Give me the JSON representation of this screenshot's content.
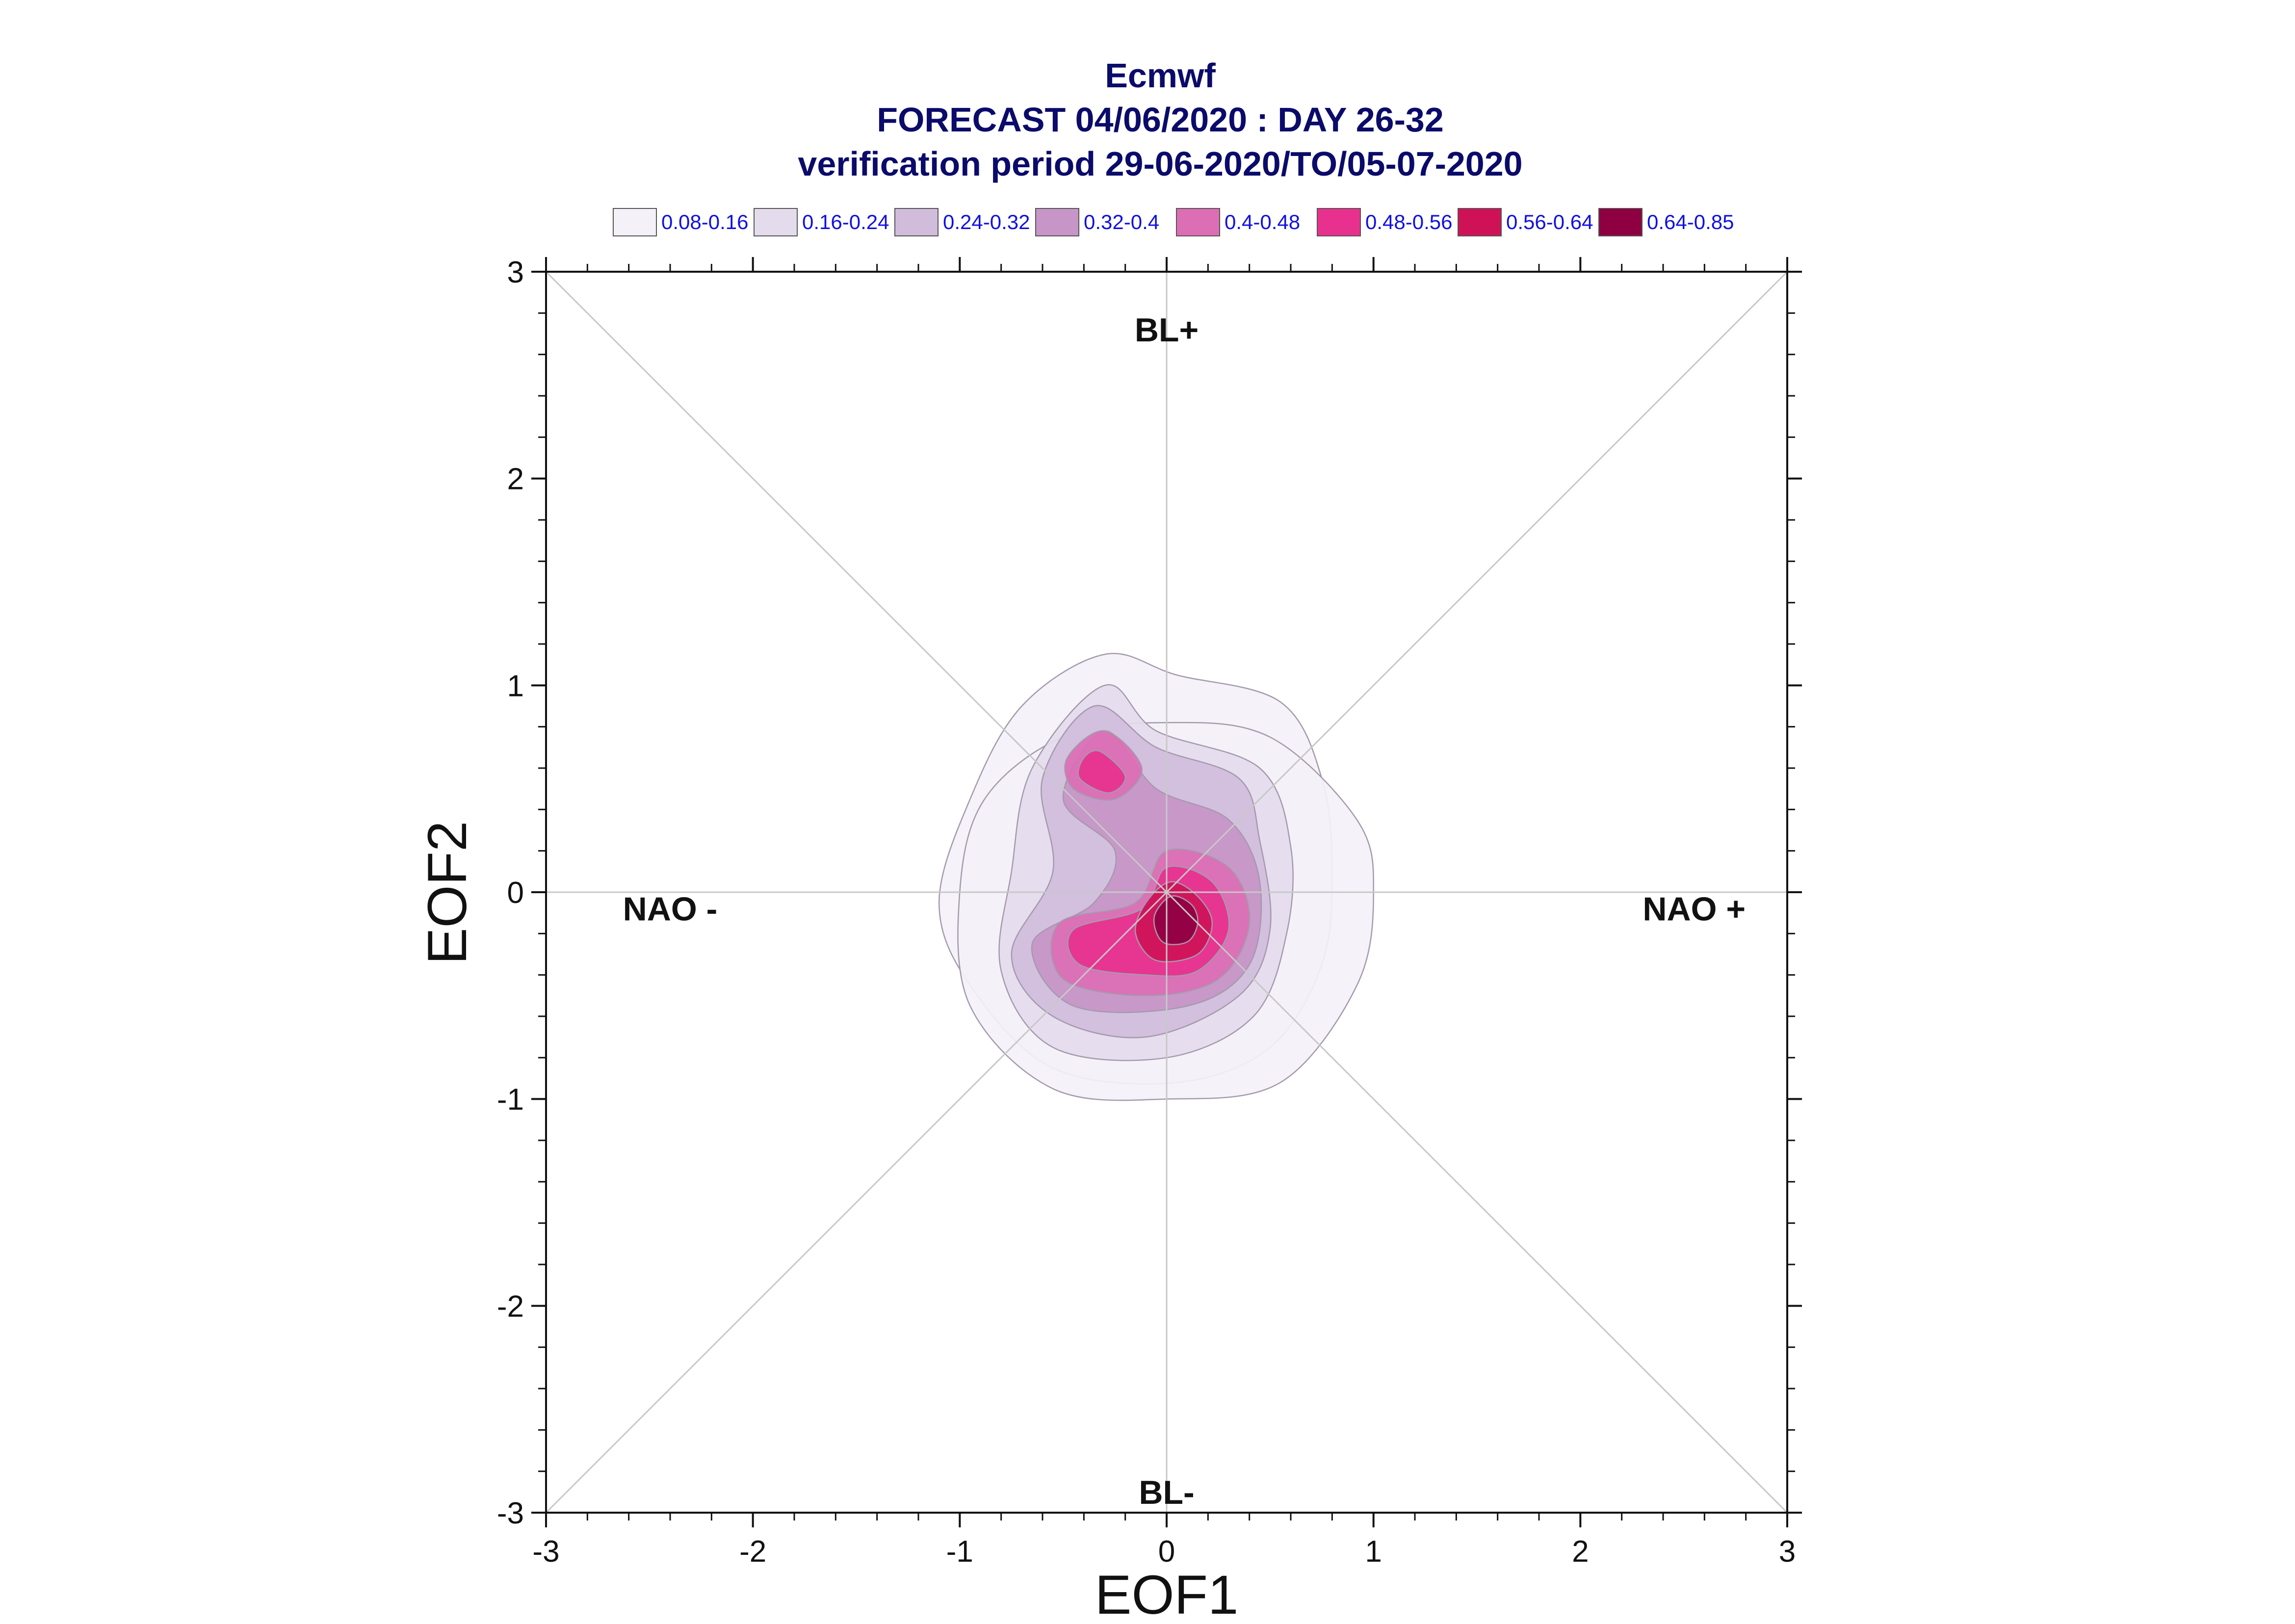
{
  "chart_data": {
    "type": "contour",
    "title_lines": [
      "Ecmwf",
      "FORECAST 04/06/2020 : DAY 26-32",
      "verification period 29-06-2020/TO/05-07-2020"
    ],
    "xlabel": "EOF1",
    "ylabel": "EOF2",
    "xlim": [
      -3,
      3
    ],
    "ylim": [
      -3,
      3
    ],
    "xticks": [
      "-3",
      "-2",
      "-1",
      "0",
      "1",
      "2",
      "3"
    ],
    "yticks": [
      "-3",
      "-2",
      "-1",
      "0",
      "1",
      "2",
      "3"
    ],
    "grid": false,
    "legend_position": "top",
    "regime_labels": [
      {
        "text": "BL+",
        "x": 0,
        "y": 2.72
      },
      {
        "text": "BL-",
        "x": 0,
        "y": -2.9
      },
      {
        "text": "NAO -",
        "x": -2.4,
        "y": -0.08
      },
      {
        "text": "NAO +",
        "x": 2.55,
        "y": -0.08
      }
    ],
    "levels": [
      {
        "label": "0.08-0.16",
        "color": "#f4f1f8"
      },
      {
        "label": "0.16-0.24",
        "color": "#e4dced"
      },
      {
        "label": "0.24-0.32",
        "color": "#d1bcdc"
      },
      {
        "label": "0.32-0.4",
        "color": "#c795c7"
      },
      {
        "label": "0.4-0.48",
        "color": "#dc6eb5"
      },
      {
        "label": "0.48-0.56",
        "color": "#e8308e"
      },
      {
        "label": "0.56-0.64",
        "color": "#cf1258"
      },
      {
        "label": "0.64-0.85",
        "color": "#8e0042"
      }
    ],
    "contours": [
      {
        "level": 0,
        "points": [
          [
            -0.3,
            1.15
          ],
          [
            0.05,
            1.05
          ],
          [
            0.55,
            0.92
          ],
          [
            0.75,
            0.55
          ],
          [
            0.8,
            0.1
          ],
          [
            0.75,
            -0.35
          ],
          [
            0.5,
            -0.75
          ],
          [
            0.05,
            -0.92
          ],
          [
            -0.55,
            -0.85
          ],
          [
            -0.95,
            -0.45
          ],
          [
            -1.1,
            -0.05
          ],
          [
            -0.95,
            0.45
          ],
          [
            -0.7,
            0.9
          ]
        ]
      },
      {
        "level": 0,
        "points": [
          [
            0,
            0.82
          ],
          [
            0.5,
            0.75
          ],
          [
            0.92,
            0.35
          ],
          [
            1.0,
            0
          ],
          [
            0.92,
            -0.45
          ],
          [
            0.55,
            -0.92
          ],
          [
            0,
            -1.0
          ],
          [
            -0.55,
            -0.95
          ],
          [
            -0.95,
            -0.55
          ],
          [
            -1.0,
            0
          ],
          [
            -0.88,
            0.45
          ],
          [
            -0.5,
            0.75
          ]
        ]
      },
      {
        "level": 1,
        "points": [
          [
            -0.3,
            1.0
          ],
          [
            -0.05,
            0.78
          ],
          [
            0.45,
            0.6
          ],
          [
            0.6,
            0.22
          ],
          [
            0.58,
            -0.2
          ],
          [
            0.42,
            -0.6
          ],
          [
            0.0,
            -0.8
          ],
          [
            -0.55,
            -0.75
          ],
          [
            -0.8,
            -0.38
          ],
          [
            -0.75,
            0.1
          ],
          [
            -0.65,
            0.6
          ]
        ]
      },
      {
        "level": 2,
        "points": [
          [
            -0.35,
            0.9
          ],
          [
            -0.05,
            0.7
          ],
          [
            0.35,
            0.55
          ],
          [
            0.45,
            0.25
          ],
          [
            0.5,
            -0.18
          ],
          [
            0.35,
            -0.5
          ],
          [
            -0.1,
            -0.7
          ],
          [
            -0.55,
            -0.6
          ],
          [
            -0.75,
            -0.3
          ],
          [
            -0.55,
            0.1
          ],
          [
            -0.6,
            0.55
          ]
        ]
      },
      {
        "level": 3,
        "points": [
          [
            -0.3,
            0.78
          ],
          [
            -0.05,
            0.5
          ],
          [
            0.3,
            0.35
          ],
          [
            0.45,
            0.05
          ],
          [
            0.4,
            -0.35
          ],
          [
            0.1,
            -0.55
          ],
          [
            -0.45,
            -0.55
          ],
          [
            -0.65,
            -0.25
          ],
          [
            -0.35,
            -0.05
          ],
          [
            -0.25,
            0.2
          ],
          [
            -0.5,
            0.45
          ]
        ]
      },
      {
        "level": 4,
        "points": [
          [
            0.0,
            0.2
          ],
          [
            0.3,
            0.12
          ],
          [
            0.4,
            -0.15
          ],
          [
            0.25,
            -0.42
          ],
          [
            -0.1,
            -0.5
          ],
          [
            -0.5,
            -0.42
          ],
          [
            -0.52,
            -0.15
          ],
          [
            -0.15,
            -0.05
          ]
        ]
      },
      {
        "level": 4,
        "points": [
          [
            -0.3,
            0.78
          ],
          [
            -0.12,
            0.6
          ],
          [
            -0.25,
            0.45
          ],
          [
            -0.45,
            0.5
          ],
          [
            -0.48,
            0.65
          ]
        ]
      },
      {
        "level": 5,
        "points": [
          [
            0.0,
            0.12
          ],
          [
            0.22,
            0.05
          ],
          [
            0.3,
            -0.18
          ],
          [
            0.15,
            -0.38
          ],
          [
            -0.1,
            -0.4
          ],
          [
            -0.42,
            -0.35
          ],
          [
            -0.45,
            -0.18
          ],
          [
            -0.12,
            -0.08
          ]
        ]
      },
      {
        "level": 5,
        "points": [
          [
            -0.32,
            0.68
          ],
          [
            -0.2,
            0.56
          ],
          [
            -0.28,
            0.48
          ],
          [
            -0.42,
            0.55
          ],
          [
            -0.4,
            0.65
          ]
        ]
      },
      {
        "level": 6,
        "points": [
          [
            0.02,
            0.05
          ],
          [
            0.15,
            -0.02
          ],
          [
            0.22,
            -0.15
          ],
          [
            0.15,
            -0.3
          ],
          [
            -0.05,
            -0.33
          ],
          [
            -0.15,
            -0.2
          ],
          [
            -0.1,
            -0.05
          ]
        ]
      },
      {
        "level": 7,
        "points": [
          [
            0.02,
            -0.02
          ],
          [
            0.12,
            -0.06
          ],
          [
            0.15,
            -0.15
          ],
          [
            0.1,
            -0.24
          ],
          [
            -0.02,
            -0.24
          ],
          [
            -0.06,
            -0.12
          ]
        ]
      }
    ]
  }
}
